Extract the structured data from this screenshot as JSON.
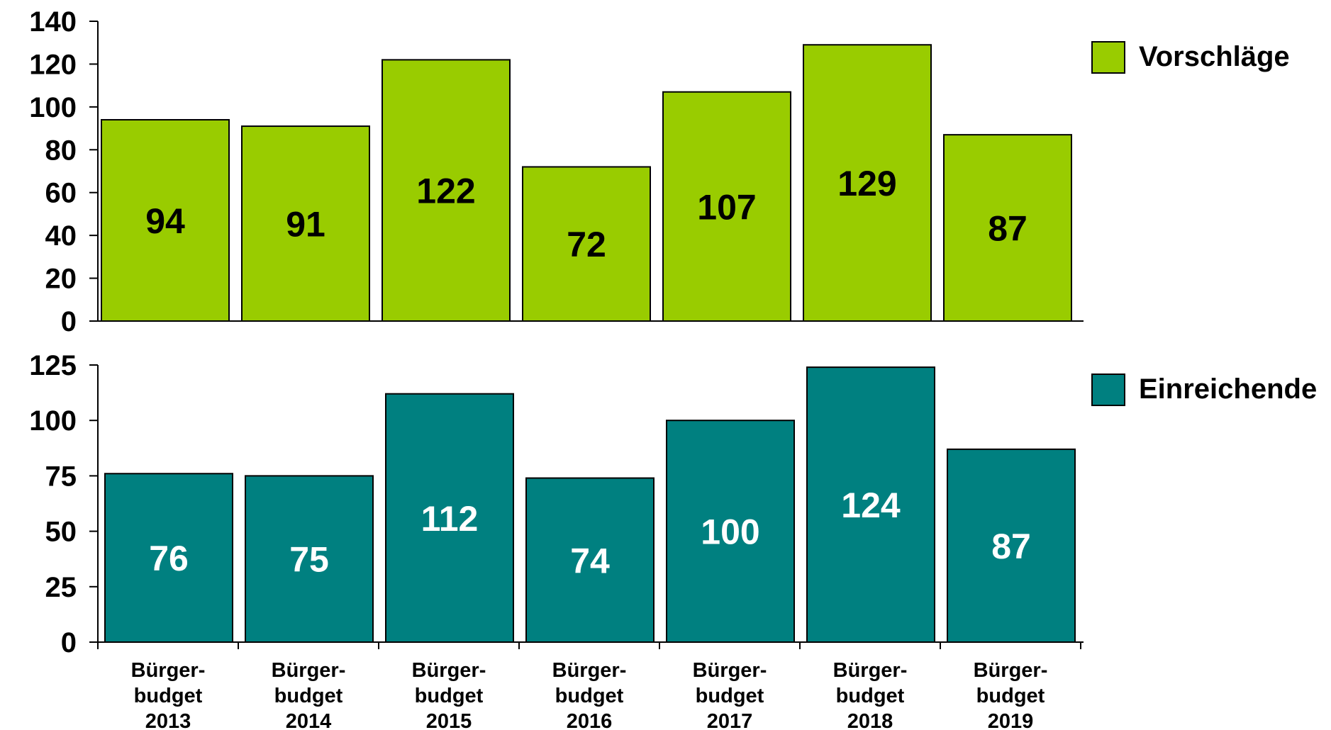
{
  "chart_data": [
    {
      "type": "bar",
      "categories": [
        [
          "Bürger-",
          "budget",
          "2013"
        ],
        [
          "Bürger-",
          "budget",
          "2014"
        ],
        [
          "Bürger-",
          "budget",
          "2015"
        ],
        [
          "Bürger-",
          "budget",
          "2016"
        ],
        [
          "Bürger-",
          "budget",
          "2017"
        ],
        [
          "Bürger-",
          "budget",
          "2018"
        ],
        [
          "Bürger-",
          "budget",
          "2019"
        ]
      ],
      "series": [
        {
          "name": "Vorschläge",
          "values": [
            94,
            91,
            122,
            72,
            107,
            129,
            87
          ],
          "color": "#99CC00",
          "label_color": "#000000"
        }
      ],
      "ylim": [
        0,
        140
      ],
      "yticks": [
        0,
        20,
        40,
        60,
        80,
        100,
        120,
        140
      ],
      "legend": "right",
      "grid": false
    },
    {
      "type": "bar",
      "categories": [
        [
          "Bürger-",
          "budget",
          "2013"
        ],
        [
          "Bürger-",
          "budget",
          "2014"
        ],
        [
          "Bürger-",
          "budget",
          "2015"
        ],
        [
          "Bürger-",
          "budget",
          "2016"
        ],
        [
          "Bürger-",
          "budget",
          "2017"
        ],
        [
          "Bürger-",
          "budget",
          "2018"
        ],
        [
          "Bürger-",
          "budget",
          "2019"
        ]
      ],
      "series": [
        {
          "name": "Einreichende",
          "values": [
            76,
            75,
            112,
            74,
            100,
            124,
            87
          ],
          "color": "#008080",
          "label_color": "#ffffff"
        }
      ],
      "ylim": [
        0,
        125
      ],
      "yticks": [
        0,
        25,
        50,
        75,
        100,
        125
      ],
      "legend": "right",
      "grid": false
    }
  ]
}
